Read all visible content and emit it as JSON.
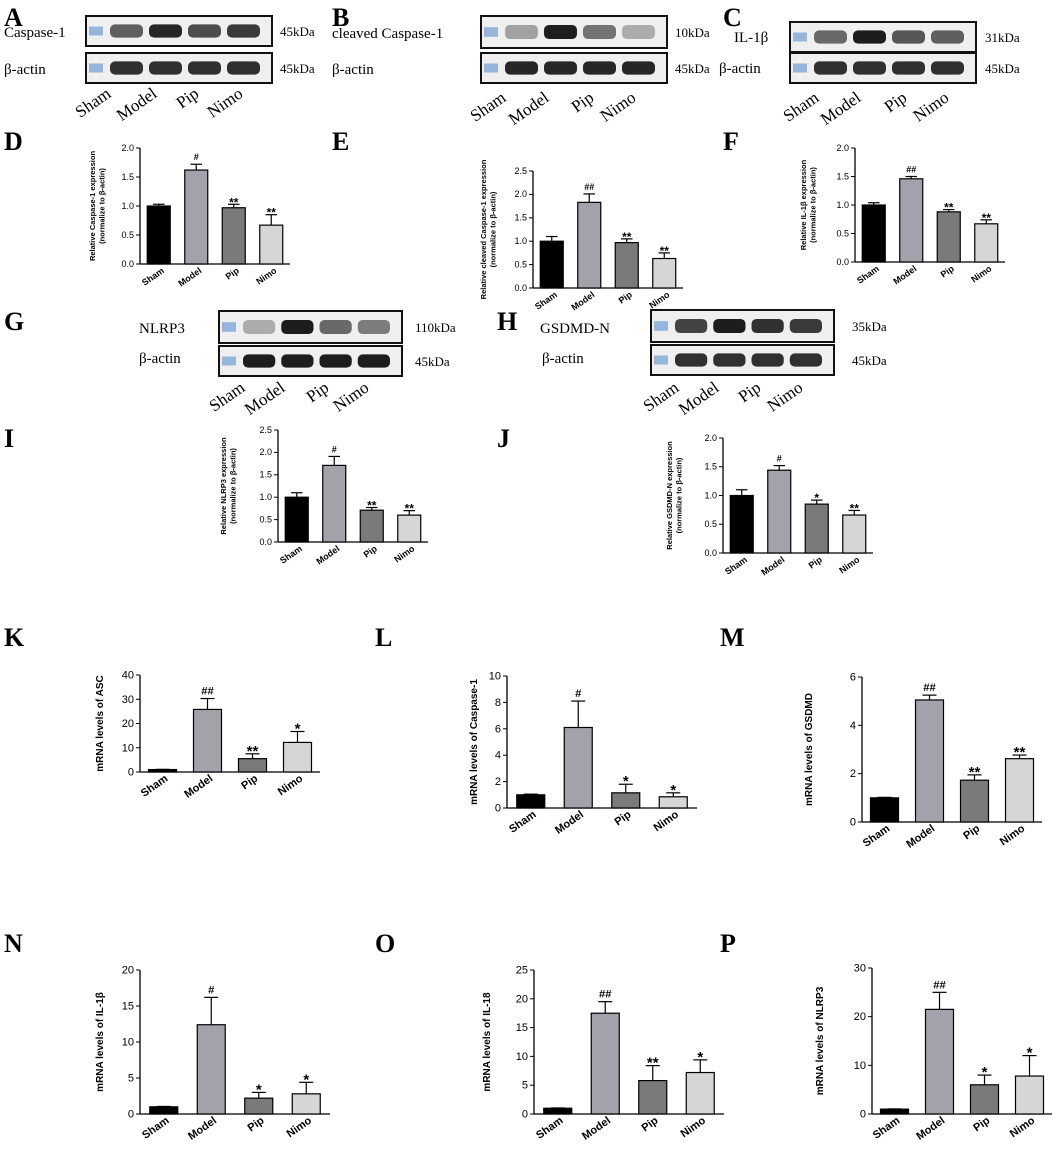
{
  "group_colors": [
    "#000000",
    "#a2a2ab",
    "#7a7a7a",
    "#d6d6d6"
  ],
  "blots": [
    {
      "panel": "A",
      "rows": [
        {
          "label": "Caspase-1",
          "kda": "45kDa",
          "intensity": [
            0.55,
            0.85,
            0.65,
            0.75
          ]
        },
        {
          "label": "β-actin",
          "kda": "45kDa",
          "intensity": [
            0.8,
            0.8,
            0.8,
            0.8
          ]
        }
      ],
      "lanes": [
        "Sham",
        "Model",
        "Pip",
        "Nimo"
      ]
    },
    {
      "panel": "B",
      "rows": [
        {
          "label": "cleaved Caspase-1",
          "kda": "10kDa",
          "intensity": [
            0.2,
            0.9,
            0.45,
            0.15
          ]
        },
        {
          "label": "β-actin",
          "kda": "45kDa",
          "intensity": [
            0.85,
            0.85,
            0.85,
            0.85
          ]
        }
      ],
      "lanes": [
        "Sham",
        "Model",
        "Pip",
        "Nimo"
      ]
    },
    {
      "panel": "C",
      "rows": [
        {
          "label": "IL-1β",
          "kda": "31kDa",
          "intensity": [
            0.5,
            0.9,
            0.6,
            0.55
          ]
        },
        {
          "label": "β-actin",
          "kda": "45kDa",
          "intensity": [
            0.8,
            0.8,
            0.8,
            0.8
          ]
        }
      ],
      "lanes": [
        "Sham",
        "Model",
        "Pip",
        "Nimo"
      ]
    },
    {
      "panel": "G",
      "rows": [
        {
          "label": "NLRP3",
          "kda": "110kDa",
          "intensity": [
            0.15,
            0.9,
            0.5,
            0.4
          ]
        },
        {
          "label": "β-actin",
          "kda": "45kDa",
          "intensity": [
            0.9,
            0.9,
            0.9,
            0.9
          ]
        }
      ],
      "lanes": [
        "Sham",
        "Model",
        "Pip",
        "Nimo"
      ]
    },
    {
      "panel": "H",
      "rows": [
        {
          "label": "GSDMD-N",
          "kda": "35kDa",
          "intensity": [
            0.7,
            0.9,
            0.8,
            0.75
          ]
        },
        {
          "label": "β-actin",
          "kda": "45kDa",
          "intensity": [
            0.8,
            0.8,
            0.8,
            0.8
          ]
        }
      ],
      "lanes": [
        "Sham",
        "Model",
        "Pip",
        "Nimo"
      ]
    }
  ],
  "chart_data": [
    {
      "panel": "D",
      "type": "bar",
      "categories": [
        "Sham",
        "Model",
        "Pip",
        "Nimo"
      ],
      "values": [
        1.0,
        1.62,
        0.97,
        0.67
      ],
      "errors": [
        0.03,
        0.1,
        0.06,
        0.18
      ],
      "significance": [
        "",
        "#",
        "**",
        "**"
      ],
      "ylabel_lines": [
        "Relative Caspase-1 expression",
        "(normalize to β-actin)"
      ],
      "ylim": [
        0,
        2.0
      ],
      "yticks": [
        "0.0",
        "0.5",
        "1.0",
        "1.5",
        "2.0"
      ]
    },
    {
      "panel": "E",
      "type": "bar",
      "categories": [
        "Sham",
        "Model",
        "Pip",
        "Nimo"
      ],
      "values": [
        1.0,
        1.83,
        0.97,
        0.63
      ],
      "errors": [
        0.1,
        0.18,
        0.08,
        0.12
      ],
      "significance": [
        "",
        "##",
        "**",
        "**"
      ],
      "ylabel_lines": [
        "Relative cleaved Caspase-1 expression",
        "(normalize to β-actin)"
      ],
      "ylim": [
        0,
        2.5
      ],
      "yticks": [
        "0.0",
        "0.5",
        "1.0",
        "1.5",
        "2.0",
        "2.5"
      ]
    },
    {
      "panel": "F",
      "type": "bar",
      "categories": [
        "Sham",
        "Model",
        "Pip",
        "Nimo"
      ],
      "values": [
        1.0,
        1.46,
        0.88,
        0.67
      ],
      "errors": [
        0.04,
        0.04,
        0.04,
        0.07
      ],
      "significance": [
        "",
        "##",
        "**",
        "**"
      ],
      "ylabel_lines": [
        "Relative IL-1β expression",
        "(normalize to β-actin)"
      ],
      "ylim": [
        0,
        2.0
      ],
      "yticks": [
        "0.0",
        "0.5",
        "1.0",
        "1.5",
        "2.0"
      ]
    },
    {
      "panel": "I",
      "type": "bar",
      "categories": [
        "Sham",
        "Model",
        "Pip",
        "Nimo"
      ],
      "values": [
        1.0,
        1.71,
        0.71,
        0.6
      ],
      "errors": [
        0.1,
        0.2,
        0.06,
        0.1
      ],
      "significance": [
        "",
        "#",
        "**",
        "**"
      ],
      "ylabel_lines": [
        "Relative NLRP3 expression",
        "(normalize to β-actin)"
      ],
      "ylim": [
        0,
        2.5
      ],
      "yticks": [
        "0.0",
        "0.5",
        "1.0",
        "1.5",
        "2.0",
        "2.5"
      ]
    },
    {
      "panel": "J",
      "type": "bar",
      "categories": [
        "Sham",
        "Model",
        "Pip",
        "Nimo"
      ],
      "values": [
        1.0,
        1.44,
        0.85,
        0.66
      ],
      "errors": [
        0.1,
        0.08,
        0.07,
        0.08
      ],
      "significance": [
        "",
        "#",
        "*",
        "**"
      ],
      "ylabel_lines": [
        "Relative GSDMD-N expression",
        "(normalize to β-actin)"
      ],
      "ylim": [
        0,
        2.0
      ],
      "yticks": [
        "0.0",
        "0.5",
        "1.0",
        "1.5",
        "2.0"
      ]
    },
    {
      "panel": "K",
      "type": "bar",
      "categories": [
        "Sham",
        "Model",
        "Pip",
        "Nimo"
      ],
      "values": [
        1.0,
        25.8,
        5.5,
        12.2
      ],
      "errors": [
        0.1,
        4.5,
        2.0,
        4.5
      ],
      "significance": [
        "",
        "##",
        "**",
        "*"
      ],
      "ylabel_lines": [
        "mRNA levels of ASC"
      ],
      "ylim": [
        0,
        40
      ],
      "yticks": [
        "0",
        "10",
        "20",
        "30",
        "40"
      ]
    },
    {
      "panel": "L",
      "type": "bar",
      "categories": [
        "Sham",
        "Model",
        "Pip",
        "Nimo"
      ],
      "values": [
        1.0,
        6.1,
        1.15,
        0.85
      ],
      "errors": [
        0.05,
        2.0,
        0.65,
        0.3
      ],
      "significance": [
        "",
        "#",
        "*",
        "*"
      ],
      "ylabel_lines": [
        "mRNA levels of Caspase-1"
      ],
      "ylim": [
        0,
        10
      ],
      "yticks": [
        "0",
        "2",
        "4",
        "6",
        "8",
        "10"
      ]
    },
    {
      "panel": "M",
      "type": "bar",
      "categories": [
        "Sham",
        "Model",
        "Pip",
        "Nimo"
      ],
      "values": [
        1.0,
        5.05,
        1.73,
        2.62
      ],
      "errors": [
        0.02,
        0.2,
        0.22,
        0.15
      ],
      "significance": [
        "",
        "##",
        "**",
        "**"
      ],
      "ylabel_lines": [
        "mRNA levels of GSDMD"
      ],
      "ylim": [
        0,
        6
      ],
      "yticks": [
        "0",
        "2",
        "4",
        "6"
      ]
    },
    {
      "panel": "N",
      "type": "bar",
      "categories": [
        "Sham",
        "Model",
        "Pip",
        "Nimo"
      ],
      "values": [
        1.0,
        12.4,
        2.2,
        2.8
      ],
      "errors": [
        0.05,
        3.8,
        0.8,
        1.6
      ],
      "significance": [
        "",
        "#",
        "*",
        "*"
      ],
      "ylabel_lines": [
        "mRNA levels of IL-1β"
      ],
      "ylim": [
        0,
        20
      ],
      "yticks": [
        "0",
        "5",
        "10",
        "15",
        "20"
      ]
    },
    {
      "panel": "O",
      "type": "bar",
      "categories": [
        "Sham",
        "Model",
        "Pip",
        "Nimo"
      ],
      "values": [
        1.0,
        17.5,
        5.8,
        7.2
      ],
      "errors": [
        0.05,
        2.0,
        2.6,
        2.2
      ],
      "significance": [
        "",
        "##",
        "**",
        "*"
      ],
      "ylabel_lines": [
        "mRNA levels of IL-18"
      ],
      "ylim": [
        0,
        25
      ],
      "yticks": [
        "0",
        "5",
        "10",
        "15",
        "20",
        "25"
      ]
    },
    {
      "panel": "P",
      "type": "bar",
      "categories": [
        "Sham",
        "Model",
        "Pip",
        "Nimo"
      ],
      "values": [
        1.0,
        21.5,
        6.0,
        7.8
      ],
      "errors": [
        0.05,
        3.5,
        2.0,
        4.2
      ],
      "significance": [
        "",
        "##",
        "*",
        "*"
      ],
      "ylabel_lines": [
        "mRNA levels of NLRP3"
      ],
      "ylim": [
        0,
        30
      ],
      "yticks": [
        "0",
        "10",
        "20",
        "30"
      ]
    }
  ]
}
